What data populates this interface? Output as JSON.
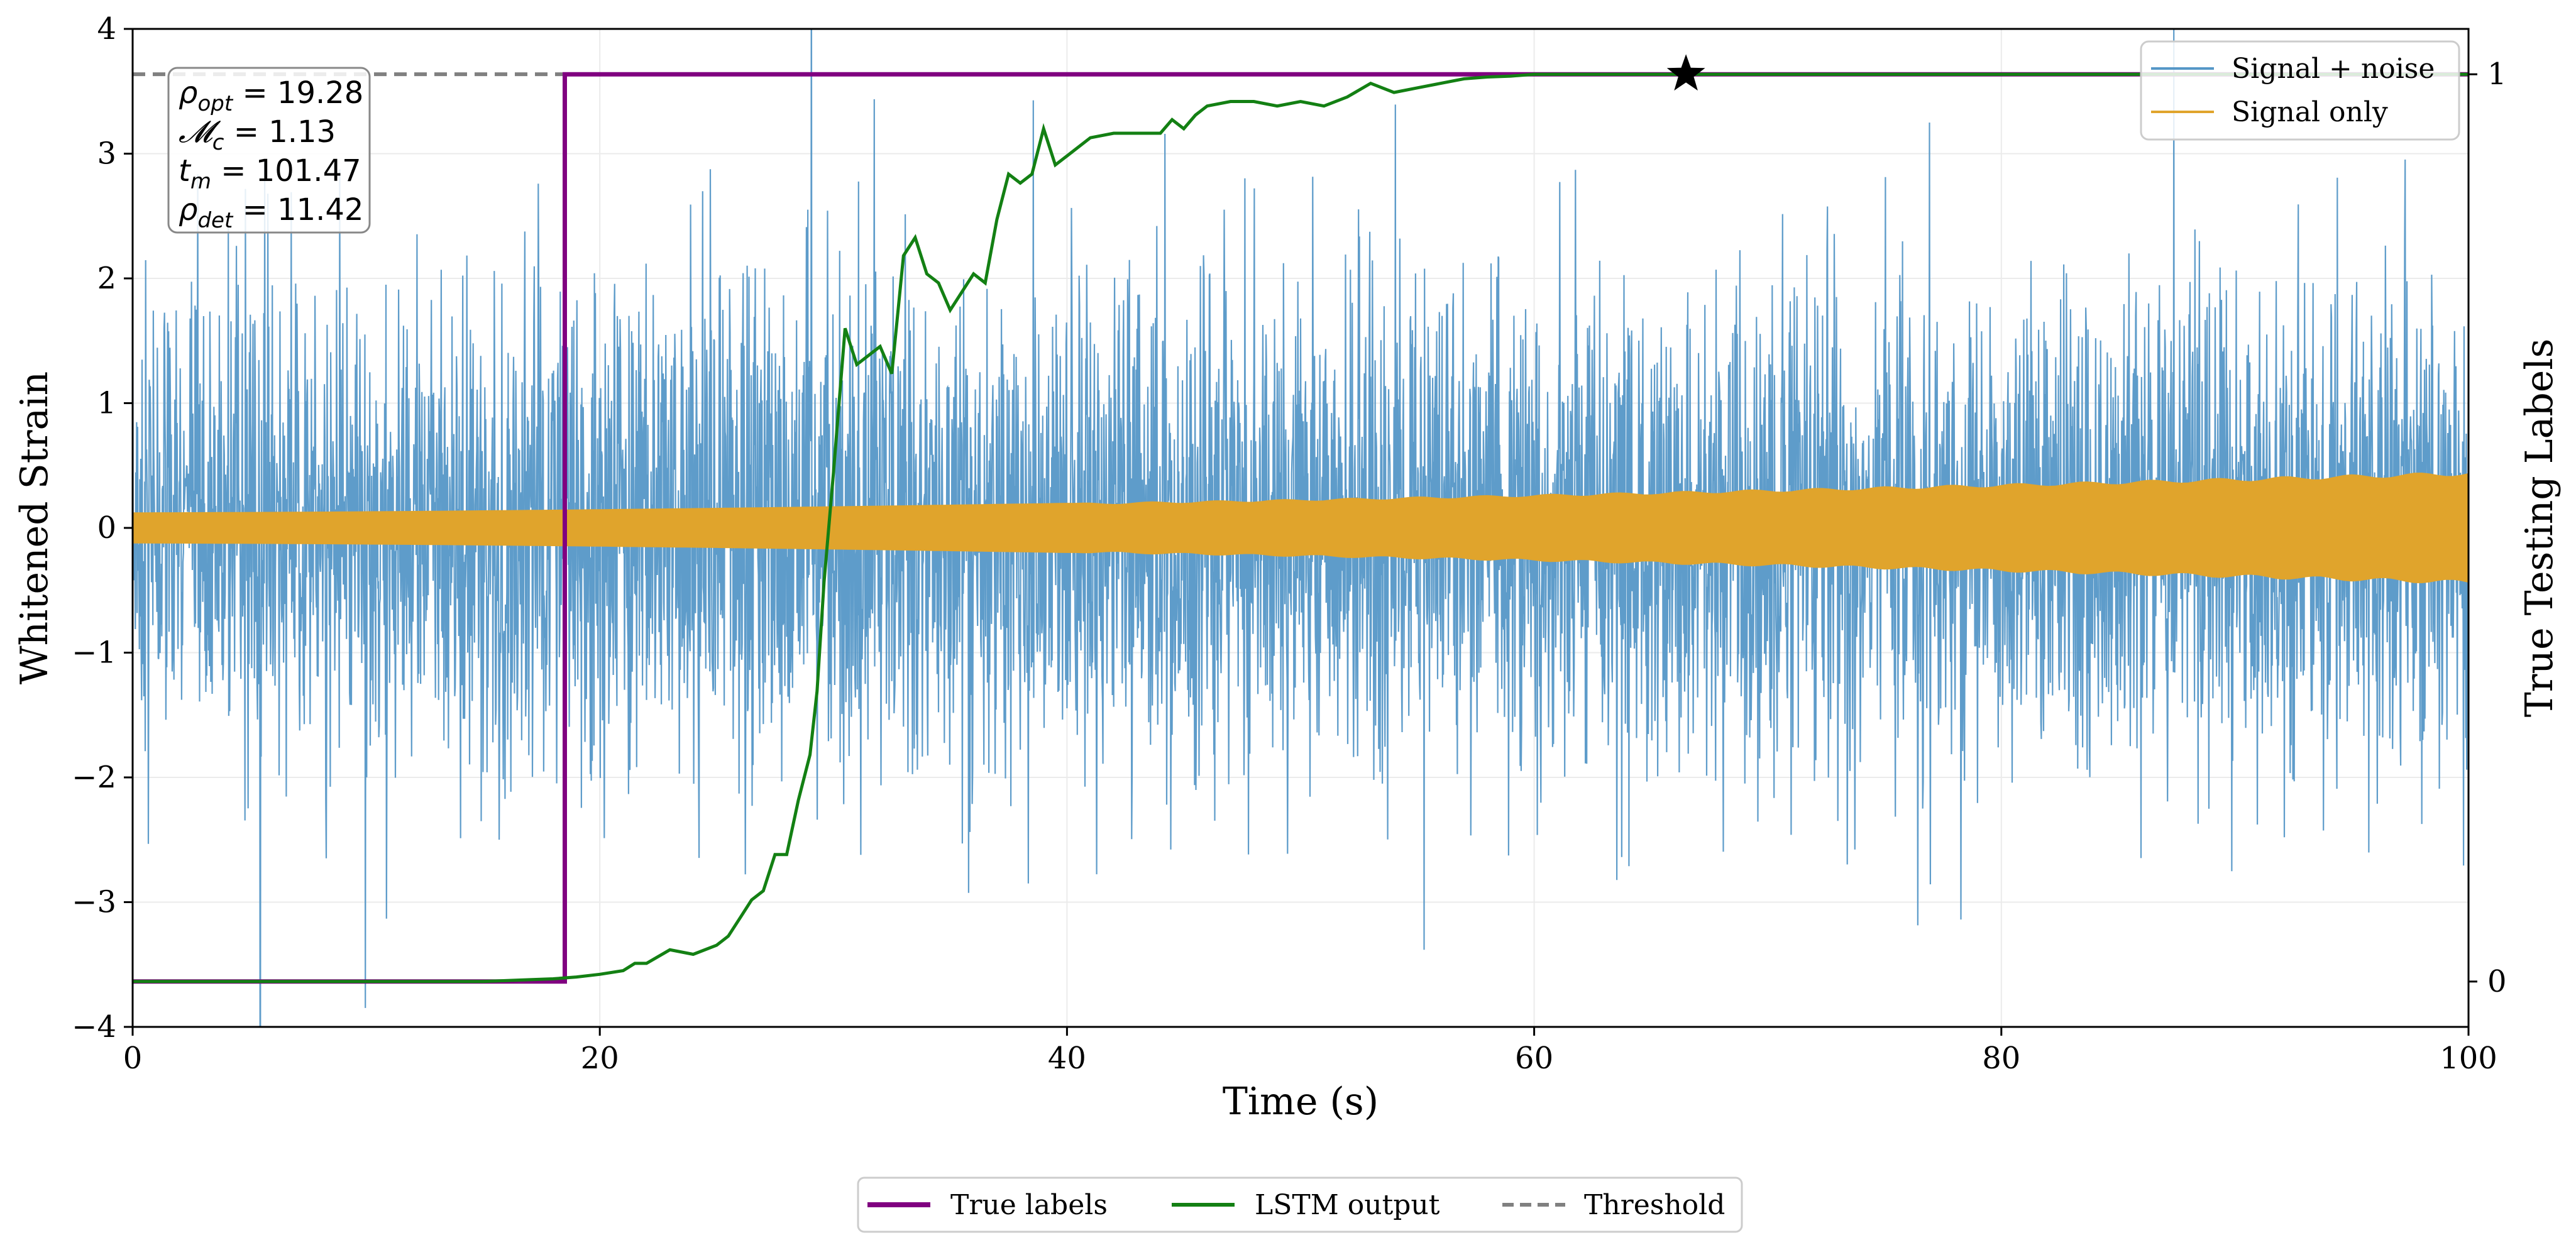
{
  "chart_data": {
    "type": "line",
    "xlabel": "Time (s)",
    "ylabel": "Whitened Strain",
    "y2label": "True Testing Labels",
    "xlim": [
      0,
      100
    ],
    "ylim": [
      -4,
      4
    ],
    "y2lim": [
      -0.05,
      1.05
    ],
    "x_ticks": [
      "0",
      "20",
      "40",
      "60",
      "80",
      "100"
    ],
    "y_ticks": [
      "−4",
      "−3",
      "−2",
      "−1",
      "0",
      "1",
      "2",
      "3",
      "4"
    ],
    "y2_ticks": [
      "0",
      "1"
    ],
    "grid": true,
    "series": [
      {
        "name": "Signal + noise",
        "axis": "left",
        "style": "noise",
        "sigma": 0.95,
        "color": "#5597c7"
      },
      {
        "name": "Signal only",
        "axis": "left",
        "style": "envelope",
        "amplitude_start": 0.12,
        "amplitude_end": 0.45,
        "color": "#e0a42c"
      },
      {
        "name": "True labels",
        "axis": "right",
        "color": "#800080",
        "x": [
          0,
          18.5,
          18.5,
          100
        ],
        "y": [
          0,
          0,
          1,
          1
        ]
      },
      {
        "name": "LSTM output",
        "axis": "right",
        "color": "#138013",
        "x": [
          0,
          5,
          10,
          15,
          17,
          18,
          19,
          20,
          21,
          21.5,
          22,
          23,
          24,
          25,
          25.5,
          26,
          26.5,
          27,
          27.5,
          28,
          28.5,
          29,
          29.3,
          29.6,
          30,
          30.5,
          31,
          32,
          32.5,
          33,
          33.5,
          34,
          34.5,
          35,
          36,
          36.5,
          37,
          37.5,
          38,
          38.5,
          39,
          39.5,
          40,
          41,
          42,
          43,
          44,
          44.5,
          45,
          45.5,
          46,
          47,
          48,
          49,
          50,
          51,
          52,
          53,
          54,
          55,
          56,
          57,
          58,
          59,
          60,
          62,
          65,
          70,
          80,
          90,
          100
        ],
        "y": [
          0,
          0,
          0,
          0,
          0.002,
          0.003,
          0.005,
          0.008,
          0.012,
          0.02,
          0.02,
          0.035,
          0.03,
          0.04,
          0.05,
          0.07,
          0.09,
          0.1,
          0.14,
          0.14,
          0.2,
          0.25,
          0.32,
          0.44,
          0.56,
          0.72,
          0.68,
          0.7,
          0.67,
          0.8,
          0.82,
          0.78,
          0.77,
          0.74,
          0.78,
          0.77,
          0.84,
          0.89,
          0.88,
          0.89,
          0.94,
          0.9,
          0.91,
          0.93,
          0.935,
          0.935,
          0.935,
          0.95,
          0.94,
          0.955,
          0.965,
          0.97,
          0.97,
          0.965,
          0.97,
          0.965,
          0.975,
          0.99,
          0.98,
          0.985,
          0.99,
          0.995,
          0.997,
          0.998,
          1,
          1,
          1,
          1,
          1,
          1,
          1
        ]
      },
      {
        "name": "Threshold",
        "axis": "right",
        "style": "dashed",
        "color": "#808080",
        "y": 1
      }
    ],
    "annotations": [
      {
        "type": "marker",
        "shape": "star",
        "x": 66.5,
        "y2": 1
      }
    ],
    "info_box": [
      {
        "sym": "ρ",
        "sub": "opt",
        "val": " = 19.28"
      },
      {
        "sym": "𝓜",
        "sub": "c",
        "val": " = 1.13"
      },
      {
        "sym": "t",
        "sub": "m",
        "val": " = 101.47"
      },
      {
        "sym": "ρ",
        "sub": "det",
        "val": " = 11.42"
      }
    ],
    "legend_top": [
      "Signal + noise",
      "Signal only"
    ],
    "legend_bottom": [
      "True labels",
      "LSTM output",
      "Threshold"
    ]
  }
}
